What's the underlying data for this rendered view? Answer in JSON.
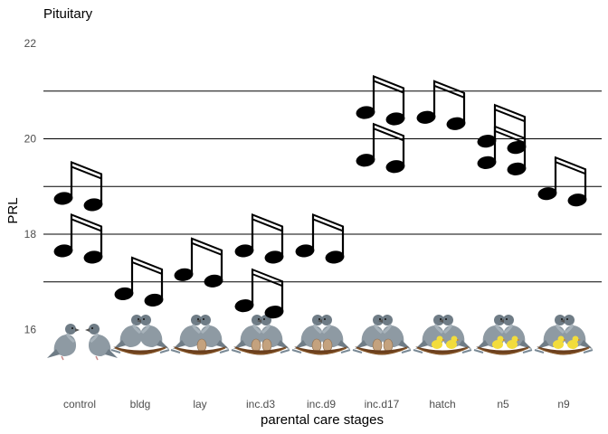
{
  "chart_data": {
    "type": "scatter",
    "title": "Pituitary",
    "xlabel": "parental care stages",
    "ylabel": "PRL",
    "ylim": [
      15.2,
      22.4
    ],
    "yticks": [
      16,
      18,
      20,
      22
    ],
    "gridlines": [
      17,
      18,
      19,
      20,
      21
    ],
    "marker": "music-note-glyph",
    "categories": [
      "control",
      "bldg",
      "lay",
      "inc.d3",
      "inc.d9",
      "inc.d17",
      "hatch",
      "n5",
      "n9"
    ],
    "notes": [
      {
        "category": "control",
        "y": 17.65
      },
      {
        "category": "control",
        "y": 18.75
      },
      {
        "category": "bldg",
        "y": 16.75
      },
      {
        "category": "lay",
        "y": 17.15
      },
      {
        "category": "inc.d3",
        "y": 16.5
      },
      {
        "category": "inc.d3",
        "y": 17.65
      },
      {
        "category": "inc.d9",
        "y": 17.65
      },
      {
        "category": "inc.d17",
        "y": 19.55
      },
      {
        "category": "inc.d17",
        "y": 20.55
      },
      {
        "category": "hatch",
        "y": 20.45
      },
      {
        "category": "n5",
        "y": 19.5
      },
      {
        "category": "n5",
        "y": 19.95
      },
      {
        "category": "n9",
        "y": 18.85
      }
    ],
    "stage_icons": [
      {
        "category": "control",
        "icon": "pigeon-pair-icon",
        "eggs": 0,
        "chicks": 0,
        "nest": false
      },
      {
        "category": "bldg",
        "icon": "pigeon-pair-nest-icon",
        "eggs": 0,
        "chicks": 0,
        "nest": true
      },
      {
        "category": "lay",
        "icon": "pigeon-pair-nest-egg-icon",
        "eggs": 1,
        "chicks": 0,
        "nest": true
      },
      {
        "category": "inc.d3",
        "icon": "pigeon-pair-nest-eggs-icon",
        "eggs": 2,
        "chicks": 0,
        "nest": true
      },
      {
        "category": "inc.d9",
        "icon": "pigeon-pair-nest-eggs-icon",
        "eggs": 2,
        "chicks": 0,
        "nest": true
      },
      {
        "category": "inc.d17",
        "icon": "pigeon-pair-nest-eggs-icon",
        "eggs": 2,
        "chicks": 0,
        "nest": true
      },
      {
        "category": "hatch",
        "icon": "pigeon-pair-nest-chicks-icon",
        "eggs": 0,
        "chicks": 2,
        "nest": true
      },
      {
        "category": "n5",
        "icon": "pigeon-pair-nest-chicks-icon",
        "eggs": 0,
        "chicks": 2,
        "nest": true
      },
      {
        "category": "n9",
        "icon": "pigeon-pair-nest-chicks-icon",
        "eggs": 0,
        "chicks": 2,
        "nest": true
      }
    ],
    "colors": {
      "gridline": "#000000",
      "note": "#000000",
      "pigeon_body": "#8e9aa3",
      "pigeon_dark": "#6f7c86",
      "nest": "#6b3f1d",
      "egg": "#c4a27e",
      "chick": "#f2dc3c"
    },
    "grid": true,
    "legend": "none"
  }
}
